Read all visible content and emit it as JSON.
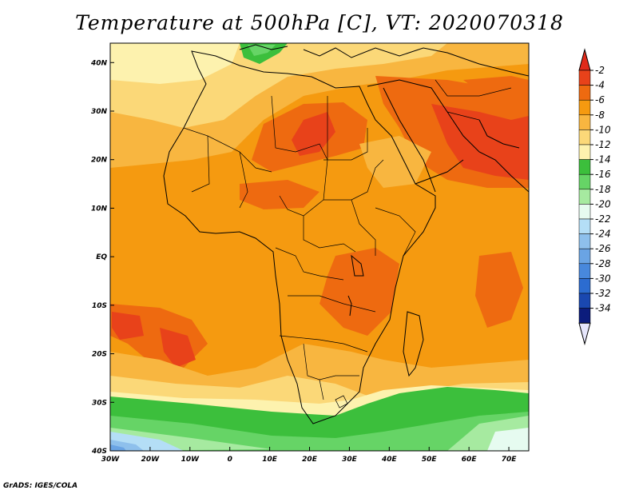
{
  "title": "Temperature at 500hPa [C], VT: 2020070318",
  "credit": "GrADS: IGES/COLA",
  "map": {
    "lon_labels": [
      "30W",
      "20W",
      "10W",
      "0",
      "10E",
      "20E",
      "30E",
      "40E",
      "50E",
      "60E",
      "70E"
    ],
    "lat_labels": [
      "40N",
      "30N",
      "20N",
      "10N",
      "EQ",
      "10S",
      "20S",
      "30S",
      "40S"
    ],
    "lon_range": [
      -30,
      75
    ],
    "lat_range": [
      -40,
      44
    ]
  },
  "colorbar": {
    "labels": [
      "-2",
      "-4",
      "-6",
      "-8",
      "-10",
      "-12",
      "-14",
      "-16",
      "-18",
      "-20",
      "-22",
      "-24",
      "-26",
      "-28",
      "-30",
      "-32",
      "-34"
    ],
    "colors": [
      "#e8421a",
      "#ee6a10",
      "#f59a10",
      "#f8b640",
      "#fbd878",
      "#fdf2ae",
      "#3cbf3c",
      "#66d466",
      "#a6eaa0",
      "#e6fbf0",
      "#b4def6",
      "#8ec0ec",
      "#6aa4e4",
      "#4888dc",
      "#2c6cd0",
      "#1a48b0",
      "#0c1c7c"
    ],
    "top_arrow_color": "#e02a1a",
    "bottom_arrow_color": "#e6e6fb"
  }
}
